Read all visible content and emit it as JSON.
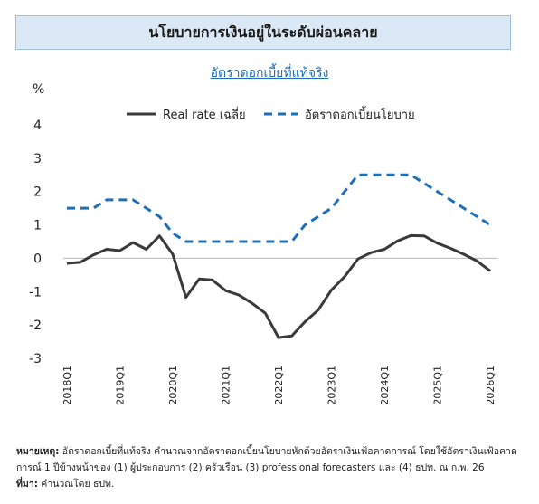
{
  "header": {
    "title": "นโยบายการเงินอยู่ในระดับผ่อนคลาย",
    "subtitle": "อัตราดอกเบี้ยที่แท้จริง"
  },
  "chart_data": {
    "type": "line",
    "ylabel": "%",
    "ylim": [
      -3,
      4
    ],
    "yticks": [
      4,
      3,
      2,
      1,
      0,
      -1,
      -2,
      -3
    ],
    "xlim": [
      2018.0,
      2026.0
    ],
    "xticks": [
      {
        "label": "2018Q1",
        "x": 2018.0
      },
      {
        "label": "2019Q1",
        "x": 2019.0
      },
      {
        "label": "2020Q1",
        "x": 2020.0
      },
      {
        "label": "2021Q1",
        "x": 2021.0
      },
      {
        "label": "2022Q1",
        "x": 2022.0
      },
      {
        "label": "2023Q1",
        "x": 2023.0
      },
      {
        "label": "2024Q1",
        "x": 2024.0
      },
      {
        "label": "2025Q1",
        "x": 2025.0
      },
      {
        "label": "2026Q1",
        "x": 2026.0
      }
    ],
    "legend_position": "top",
    "grid": false,
    "series": [
      {
        "name": "Real rate เฉลี่ย",
        "color": "#3a3a3a",
        "style": "solid",
        "points": [
          [
            2018.0,
            -0.15
          ],
          [
            2018.25,
            -0.12
          ],
          [
            2018.5,
            0.1
          ],
          [
            2018.75,
            0.27
          ],
          [
            2019.0,
            0.23
          ],
          [
            2019.25,
            0.47
          ],
          [
            2019.5,
            0.27
          ],
          [
            2019.75,
            0.67
          ],
          [
            2020.0,
            0.12
          ],
          [
            2020.25,
            -1.17
          ],
          [
            2020.5,
            -0.62
          ],
          [
            2020.75,
            -0.65
          ],
          [
            2021.0,
            -0.97
          ],
          [
            2021.25,
            -1.1
          ],
          [
            2021.5,
            -1.35
          ],
          [
            2021.75,
            -1.65
          ],
          [
            2022.0,
            -2.38
          ],
          [
            2022.25,
            -2.33
          ],
          [
            2022.5,
            -1.9
          ],
          [
            2022.75,
            -1.55
          ],
          [
            2023.0,
            -0.95
          ],
          [
            2023.25,
            -0.55
          ],
          [
            2023.5,
            -0.02
          ],
          [
            2023.75,
            0.17
          ],
          [
            2024.0,
            0.27
          ],
          [
            2024.25,
            0.52
          ],
          [
            2024.5,
            0.68
          ],
          [
            2024.75,
            0.67
          ],
          [
            2025.0,
            0.45
          ],
          [
            2025.25,
            0.3
          ],
          [
            2025.5,
            0.12
          ],
          [
            2025.75,
            -0.08
          ],
          [
            2026.0,
            -0.38
          ]
        ]
      },
      {
        "name": "อัตราดอกเบี้ยนโยบาย",
        "color": "#1f6fb5",
        "style": "dashed",
        "points": [
          [
            2018.0,
            1.5
          ],
          [
            2018.25,
            1.5
          ],
          [
            2018.5,
            1.5
          ],
          [
            2018.75,
            1.75
          ],
          [
            2019.0,
            1.75
          ],
          [
            2019.25,
            1.75
          ],
          [
            2019.5,
            1.5
          ],
          [
            2019.75,
            1.25
          ],
          [
            2020.0,
            0.75
          ],
          [
            2020.25,
            0.5
          ],
          [
            2020.5,
            0.5
          ],
          [
            2020.75,
            0.5
          ],
          [
            2021.0,
            0.5
          ],
          [
            2021.25,
            0.5
          ],
          [
            2021.5,
            0.5
          ],
          [
            2021.75,
            0.5
          ],
          [
            2022.0,
            0.5
          ],
          [
            2022.25,
            0.5
          ],
          [
            2022.5,
            1.0
          ],
          [
            2022.75,
            1.25
          ],
          [
            2023.0,
            1.5
          ],
          [
            2023.25,
            2.0
          ],
          [
            2023.5,
            2.5
          ],
          [
            2023.75,
            2.5
          ],
          [
            2024.0,
            2.5
          ],
          [
            2024.25,
            2.5
          ],
          [
            2024.5,
            2.5
          ],
          [
            2024.75,
            2.25
          ],
          [
            2025.0,
            2.0
          ],
          [
            2025.25,
            1.75
          ],
          [
            2025.5,
            1.5
          ],
          [
            2025.75,
            1.25
          ],
          [
            2026.0,
            1.0
          ]
        ]
      }
    ]
  },
  "footnote": {
    "note_label": "หมายเหตุ:",
    "note_text": " อัตราดอกเบี้ยที่แท้จริง คำนวณจากอัตราดอกเบี้ยนโยบายหักด้วยอัตราเงินเฟ้อคาดการณ์ โดยใช้อัตราเงินเฟ้อคาดการณ์ 1 ปีข้างหน้าของ (1) ผู้ประกอบการ (2) ครัวเรือน (3) professional forecasters และ (4) ธปท. ณ ก.พ. 26",
    "source_label": "ที่มา:",
    "source_text": " คำนวณโดย ธปท."
  }
}
